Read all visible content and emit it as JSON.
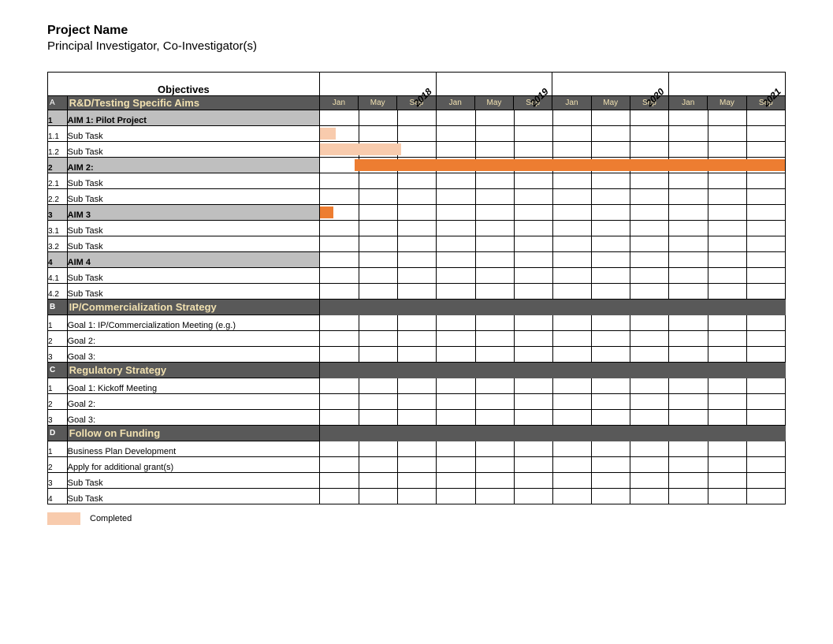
{
  "header": {
    "title": "Project Name",
    "subtitle": "Principal Investigator, Co-Investigator(s)"
  },
  "table": {
    "objectives_label": "Objectives",
    "years": [
      "2018",
      "2019",
      "2020",
      "2021"
    ],
    "months": [
      "Jan",
      "May",
      "Sep",
      "Jan",
      "May",
      "Sep",
      "Jan",
      "May",
      "Sep",
      "Jan",
      "May",
      "Sep"
    ],
    "month_count": 12
  },
  "colors": {
    "section_bg": "#595959",
    "section_text": "#f0e0b0",
    "aim_bg": "#bfbfbf",
    "bar_completed": "#f8cbad",
    "bar_active": "#ed7d31",
    "grid": "#000000",
    "background": "#ffffff"
  },
  "legend": {
    "completed_label": "Completed",
    "completed_color": "#f8cbad"
  },
  "rows": [
    {
      "type": "section",
      "id": "A",
      "label": "R&D/Testing Specific Aims"
    },
    {
      "type": "aim",
      "id": "1",
      "label": "AIM 1: Pilot Project"
    },
    {
      "type": "task",
      "id": "1.1",
      "label": "Sub Task",
      "bars": [
        {
          "start": 0,
          "end": 0.4,
          "color": "#f8cbad"
        }
      ]
    },
    {
      "type": "task",
      "id": "1.2",
      "label": "Sub Task",
      "bars": [
        {
          "start": 0,
          "end": 2.1,
          "color": "#f8cbad"
        }
      ]
    },
    {
      "type": "aim",
      "id": "2",
      "label": "AIM 2:",
      "bars": [
        {
          "start": 0.9,
          "end": 12,
          "color": "#ed7d31"
        }
      ]
    },
    {
      "type": "task",
      "id": "2.1",
      "label": "Sub Task"
    },
    {
      "type": "task",
      "id": "2.2",
      "label": "Sub Task"
    },
    {
      "type": "aim",
      "id": "3",
      "label": "AIM 3",
      "bars": [
        {
          "start": 0,
          "end": 0.35,
          "color": "#ed7d31"
        }
      ]
    },
    {
      "type": "task",
      "id": "3.1",
      "label": "Sub Task"
    },
    {
      "type": "task",
      "id": "3.2",
      "label": "Sub Task"
    },
    {
      "type": "aim",
      "id": "4",
      "label": "AIM 4"
    },
    {
      "type": "task",
      "id": "4.1",
      "label": "Sub Task"
    },
    {
      "type": "task",
      "id": "4.2",
      "label": "Sub Task"
    },
    {
      "type": "section",
      "id": "B",
      "label": "IP/Commercialization Strategy"
    },
    {
      "type": "task",
      "id": "1",
      "label": "Goal 1: IP/Commercialization Meeting (e.g.)"
    },
    {
      "type": "task",
      "id": "2",
      "label": "Goal 2:"
    },
    {
      "type": "task",
      "id": "3",
      "label": "Goal 3:"
    },
    {
      "type": "section",
      "id": "C",
      "label": "Regulatory Strategy"
    },
    {
      "type": "task",
      "id": "1",
      "label": "Goal 1: Kickoff Meeting"
    },
    {
      "type": "task",
      "id": "2",
      "label": "Goal 2:"
    },
    {
      "type": "task",
      "id": "3",
      "label": "Goal 3:"
    },
    {
      "type": "section",
      "id": "D",
      "label": "Follow on Funding"
    },
    {
      "type": "task",
      "id": "1",
      "label": "Business Plan Development"
    },
    {
      "type": "task",
      "id": "2",
      "label": "Apply for additional grant(s)"
    },
    {
      "type": "task",
      "id": "3",
      "label": "Sub Task"
    },
    {
      "type": "task",
      "id": "4",
      "label": "Sub Task"
    }
  ]
}
